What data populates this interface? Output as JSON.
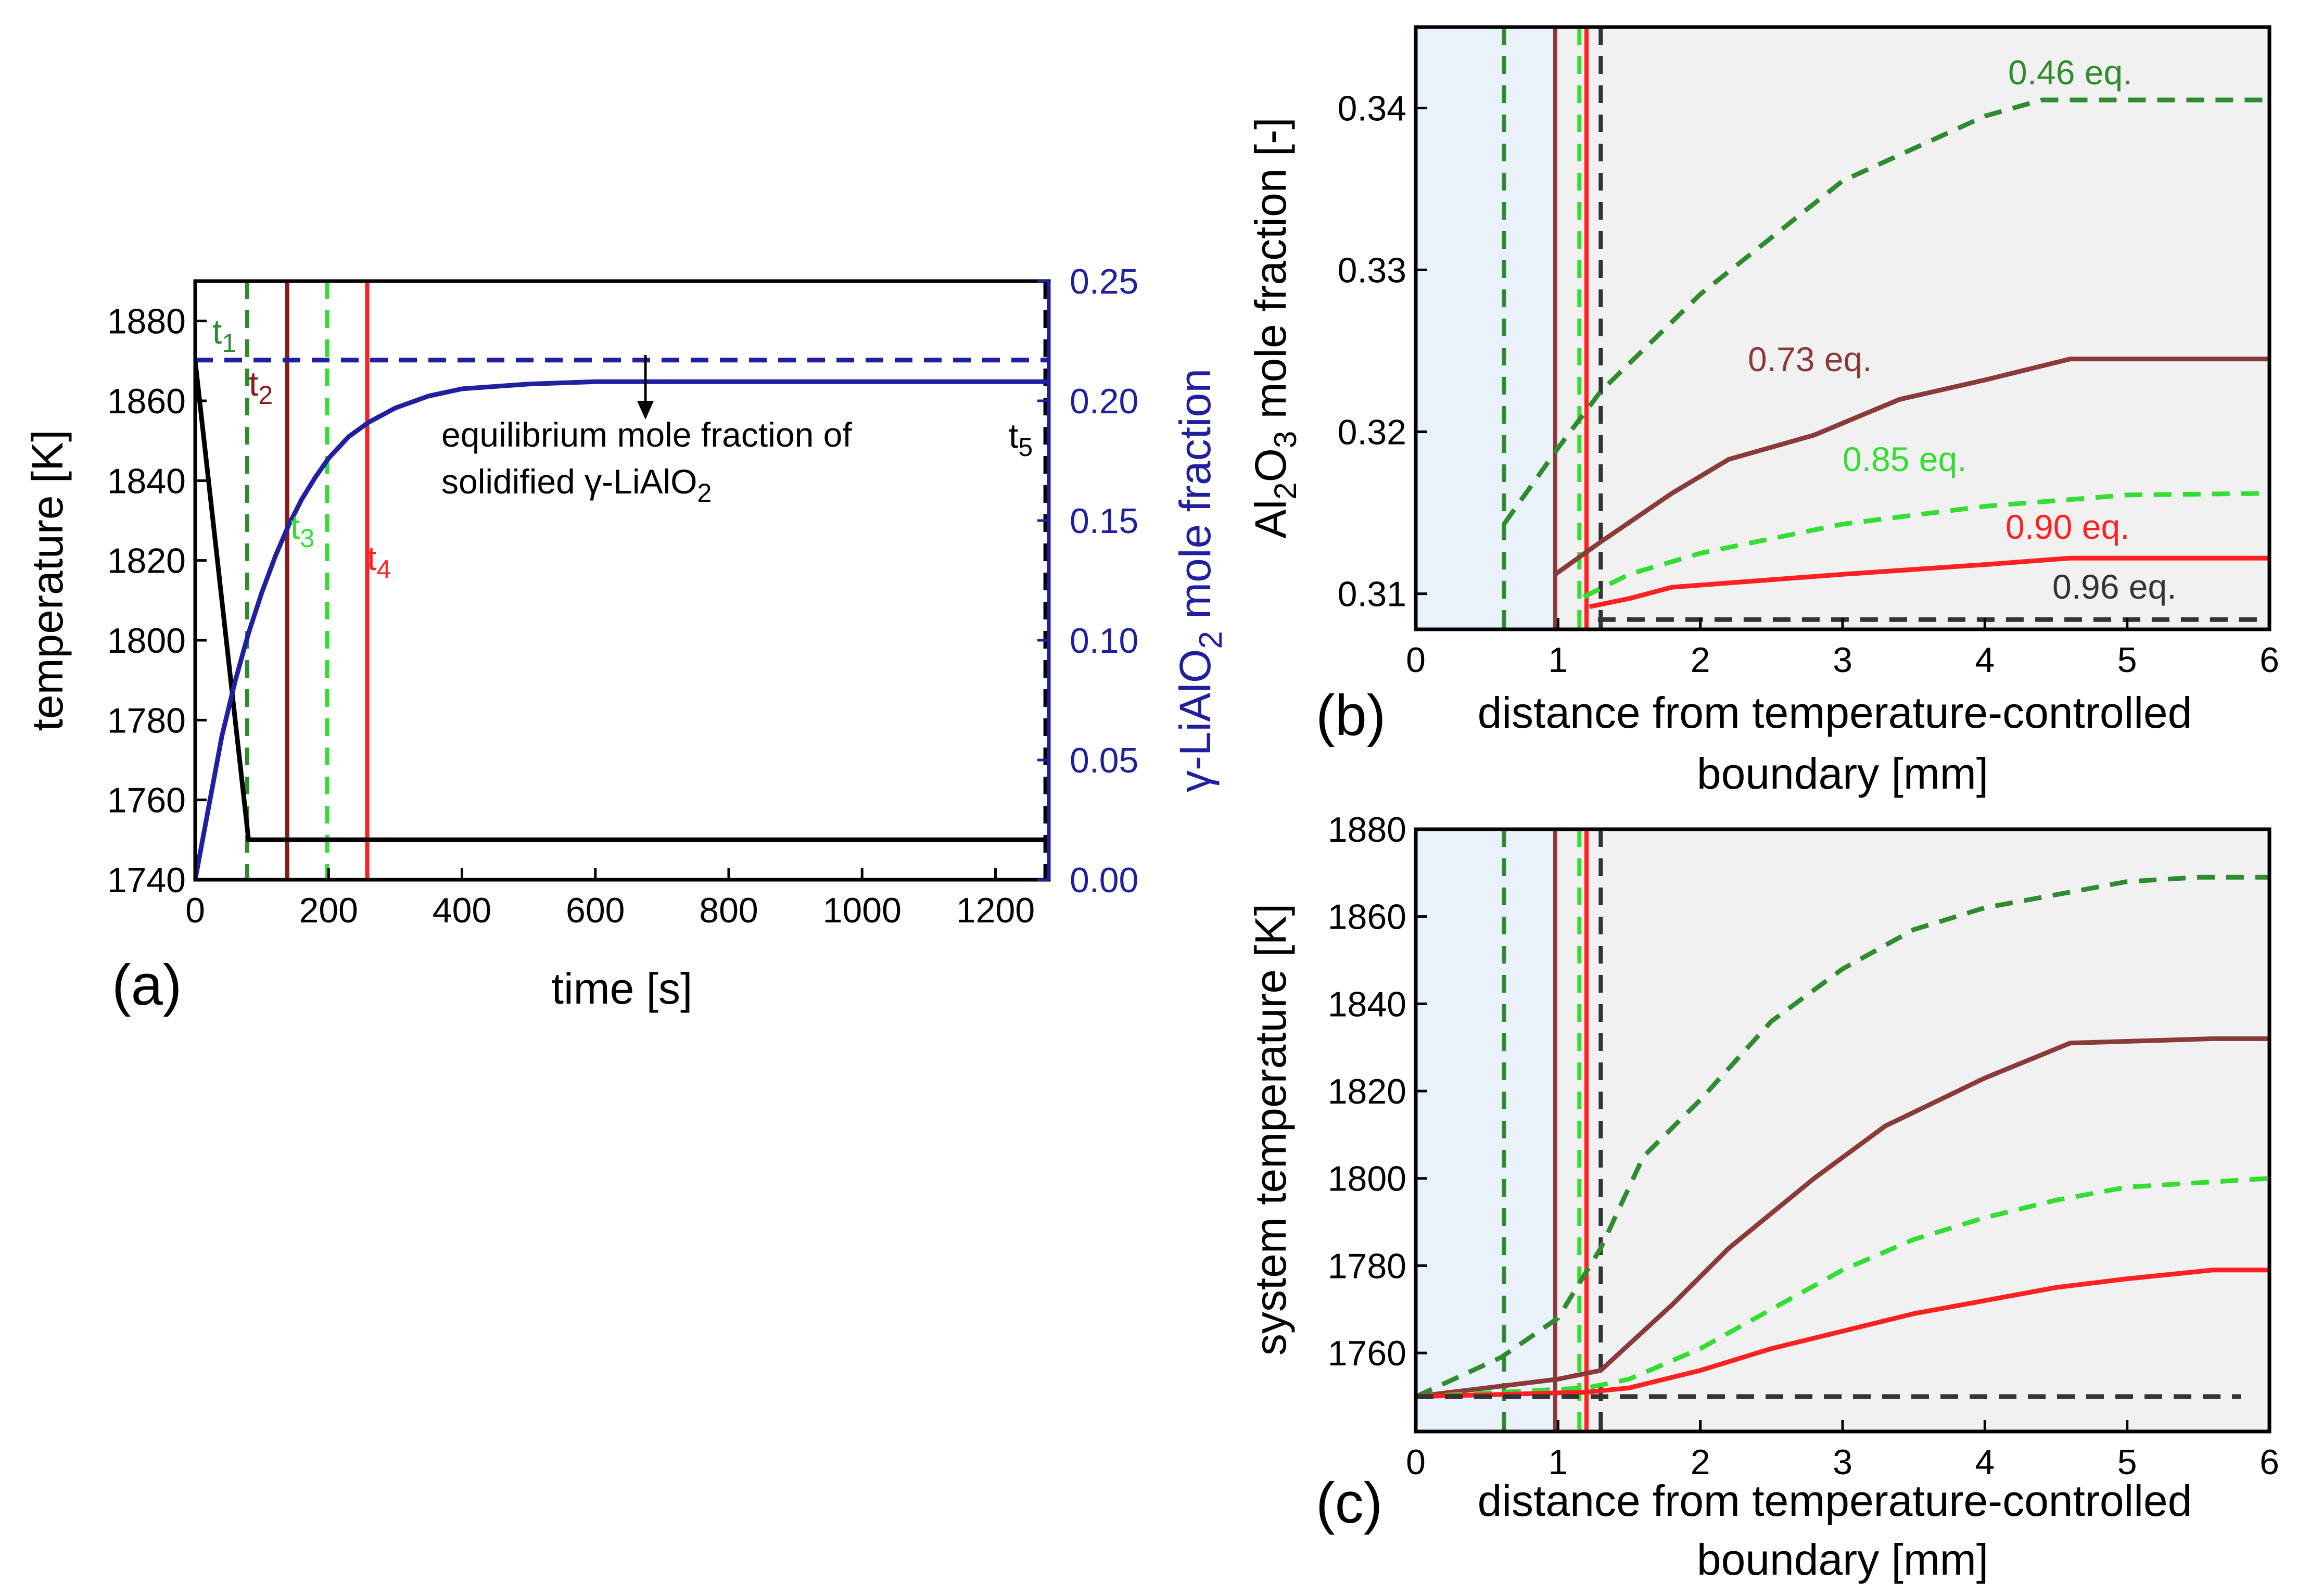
{
  "chart_data": [
    {
      "panel": "(a)",
      "type": "line",
      "xlabel": "time [s]",
      "ylabel": "temperature [K]",
      "y2label": "γ-LiAlO2 mole fraction",
      "xlim": [
        0,
        1280
      ],
      "ylim": [
        1740,
        1890
      ],
      "y2lim": [
        0,
        0.25
      ],
      "xticks": [
        "0",
        "200",
        "400",
        "600",
        "800",
        "1000",
        "1200"
      ],
      "yticks": [
        "1740",
        "1760",
        "1780",
        "1800",
        "1820",
        "1840",
        "1860",
        "1880"
      ],
      "y2ticks": [
        "0.00",
        "0.05",
        "0.10",
        "0.15",
        "0.20",
        "0.25"
      ],
      "series": [
        {
          "name": "temperature",
          "axis": "y",
          "color": "#000000",
          "style": "solid",
          "x": [
            0,
            80,
            1280
          ],
          "y": [
            1870,
            1750,
            1750
          ]
        },
        {
          "name": "γ-LiAlO2 mole fraction",
          "axis": "y2",
          "color": "#1f1fa0",
          "style": "solid",
          "x": [
            0,
            20,
            40,
            60,
            80,
            100,
            120,
            140,
            160,
            180,
            200,
            230,
            260,
            300,
            350,
            400,
            500,
            600,
            800,
            1000,
            1280
          ],
          "y": [
            0.0,
            0.03,
            0.06,
            0.083,
            0.103,
            0.12,
            0.135,
            0.148,
            0.159,
            0.168,
            0.176,
            0.185,
            0.191,
            0.197,
            0.202,
            0.205,
            0.207,
            0.208,
            0.208,
            0.208,
            0.208
          ]
        },
        {
          "name": "equilibrium mole fraction",
          "axis": "y2",
          "color": "#1f1fa0",
          "style": "dashed",
          "x": [
            0,
            1280
          ],
          "y": [
            0.217,
            0.217
          ]
        }
      ],
      "vlines": [
        {
          "label": "t1",
          "x": 78,
          "color": "#2e8b2e",
          "style": "dashed"
        },
        {
          "label": "t2",
          "x": 138,
          "color": "#8b1a1a",
          "style": "solid"
        },
        {
          "label": "t3",
          "x": 198,
          "color": "#33dd33",
          "style": "dashed"
        },
        {
          "label": "t4",
          "x": 258,
          "color": "#ff2020",
          "style": "solid"
        },
        {
          "label": "t5",
          "x": 1275,
          "color": "#000000",
          "style": "dashed"
        }
      ],
      "annotations": [
        "equilibrium mole fraction of",
        "solidified γ-LiAlO2"
      ]
    },
    {
      "panel": "(b)",
      "type": "line",
      "xlabel": "distance from temperature-controlled",
      "xlabel2": "boundary [mm]",
      "ylabel": "Al2O3 mole fraction [-]",
      "xlim": [
        0,
        6
      ],
      "ylim": [
        0.3078,
        0.345
      ],
      "xticks": [
        "0",
        "1",
        "2",
        "3",
        "4",
        "5",
        "6"
      ],
      "yticks": [
        "0.31",
        "0.32",
        "0.33",
        "0.34"
      ],
      "shaded_region_x": [
        0,
        1
      ],
      "series": [
        {
          "name": "0.46 eq.",
          "color": "#2e8b2e",
          "style": "dashed",
          "x": [
            0.62,
            1.0,
            1.3,
            2.0,
            3.0,
            4.0,
            4.4,
            6.0
          ],
          "y": [
            0.3143,
            0.319,
            0.3225,
            0.3285,
            0.3355,
            0.3395,
            0.3405,
            0.3405
          ]
        },
        {
          "name": "0.73 eq.",
          "color": "#8b3a3a",
          "style": "solid",
          "x": [
            0.98,
            1.3,
            1.8,
            2.2,
            2.8,
            3.4,
            4.0,
            4.6,
            6.0
          ],
          "y": [
            0.3112,
            0.3132,
            0.3162,
            0.3183,
            0.3198,
            0.322,
            0.3232,
            0.3245,
            0.3245
          ]
        },
        {
          "name": "0.85 eq.",
          "color": "#33dd33",
          "style": "dashed",
          "x": [
            1.18,
            1.5,
            2.0,
            3.0,
            4.0,
            5.0,
            6.0
          ],
          "y": [
            0.3098,
            0.3112,
            0.3125,
            0.3143,
            0.3154,
            0.3161,
            0.3162
          ]
        },
        {
          "name": "0.90 eq.",
          "color": "#ff2020",
          "style": "solid",
          "x": [
            1.22,
            1.5,
            1.8,
            3.0,
            4.0,
            4.6,
            6.0
          ],
          "y": [
            0.3092,
            0.3097,
            0.3104,
            0.3112,
            0.3118,
            0.3122,
            0.3122
          ]
        },
        {
          "name": "0.96 eq.",
          "color": "#333333",
          "style": "dashed",
          "x": [
            1.28,
            6.0
          ],
          "y": [
            0.3084,
            0.3084
          ]
        }
      ],
      "vlines": [
        {
          "x": 0.62,
          "color": "#2e8b2e",
          "style": "dashed"
        },
        {
          "x": 0.98,
          "color": "#8b3a3a",
          "style": "solid"
        },
        {
          "x": 1.15,
          "color": "#33dd33",
          "style": "dashed"
        },
        {
          "x": 1.2,
          "color": "#ff2020",
          "style": "solid"
        },
        {
          "x": 1.3,
          "color": "#333333",
          "style": "dashed"
        }
      ]
    },
    {
      "panel": "(c)",
      "type": "line",
      "xlabel": "distance from temperature-controlled",
      "xlabel2": "boundary [mm]",
      "ylabel": "system temperature [K]",
      "xlim": [
        0,
        6
      ],
      "ylim": [
        1742,
        1880
      ],
      "xticks": [
        "0",
        "1",
        "2",
        "3",
        "4",
        "5",
        "6"
      ],
      "yticks": [
        "1760",
        "1780",
        "1800",
        "1820",
        "1840",
        "1860",
        "1880"
      ],
      "shaded_region_x": [
        0,
        1
      ],
      "series": [
        {
          "name": "0.46 eq.",
          "color": "#2e8b2e",
          "style": "dashed",
          "x": [
            0.0,
            0.6,
            1.0,
            1.3,
            1.6,
            2.0,
            2.5,
            3.0,
            3.5,
            4.0,
            4.5,
            5.0,
            5.5,
            6.0
          ],
          "y": [
            1750,
            1759,
            1768,
            1784,
            1805,
            1818,
            1836,
            1848,
            1857,
            1862,
            1865,
            1868,
            1869,
            1869
          ]
        },
        {
          "name": "0.73 eq.",
          "color": "#8b3a3a",
          "style": "solid",
          "x": [
            0.0,
            1.0,
            1.3,
            1.5,
            1.8,
            2.2,
            2.8,
            3.3,
            4.0,
            4.6,
            5.6,
            6.0
          ],
          "y": [
            1750,
            1754,
            1756,
            1762,
            1771,
            1784,
            1800,
            1812,
            1823,
            1831,
            1832,
            1832
          ]
        },
        {
          "name": "0.85 eq.",
          "color": "#33dd33",
          "style": "dashed",
          "x": [
            0.0,
            1.2,
            1.5,
            2.0,
            2.5,
            3.0,
            3.5,
            4.0,
            4.5,
            5.0,
            6.0
          ],
          "y": [
            1750,
            1752,
            1754,
            1761,
            1770,
            1779,
            1786,
            1791,
            1795,
            1798,
            1800
          ]
        },
        {
          "name": "0.90 eq.",
          "color": "#ff2020",
          "style": "solid",
          "x": [
            0.0,
            1.2,
            1.5,
            2.0,
            2.5,
            3.0,
            3.5,
            4.0,
            4.5,
            5.0,
            5.6,
            6.0
          ],
          "y": [
            1750,
            1751,
            1752,
            1756,
            1761,
            1765,
            1769,
            1772,
            1775,
            1777,
            1779,
            1779
          ]
        },
        {
          "name": "0.96 eq.",
          "color": "#333333",
          "style": "dashed",
          "x": [
            0.0,
            5.8
          ],
          "y": [
            1750,
            1750
          ]
        }
      ],
      "vlines": [
        {
          "x": 0.62,
          "color": "#2e8b2e",
          "style": "dashed"
        },
        {
          "x": 0.98,
          "color": "#8b3a3a",
          "style": "solid"
        },
        {
          "x": 1.15,
          "color": "#33dd33",
          "style": "dashed"
        },
        {
          "x": 1.2,
          "color": "#ff2020",
          "style": "solid"
        },
        {
          "x": 1.3,
          "color": "#333333",
          "style": "dashed"
        }
      ]
    }
  ]
}
